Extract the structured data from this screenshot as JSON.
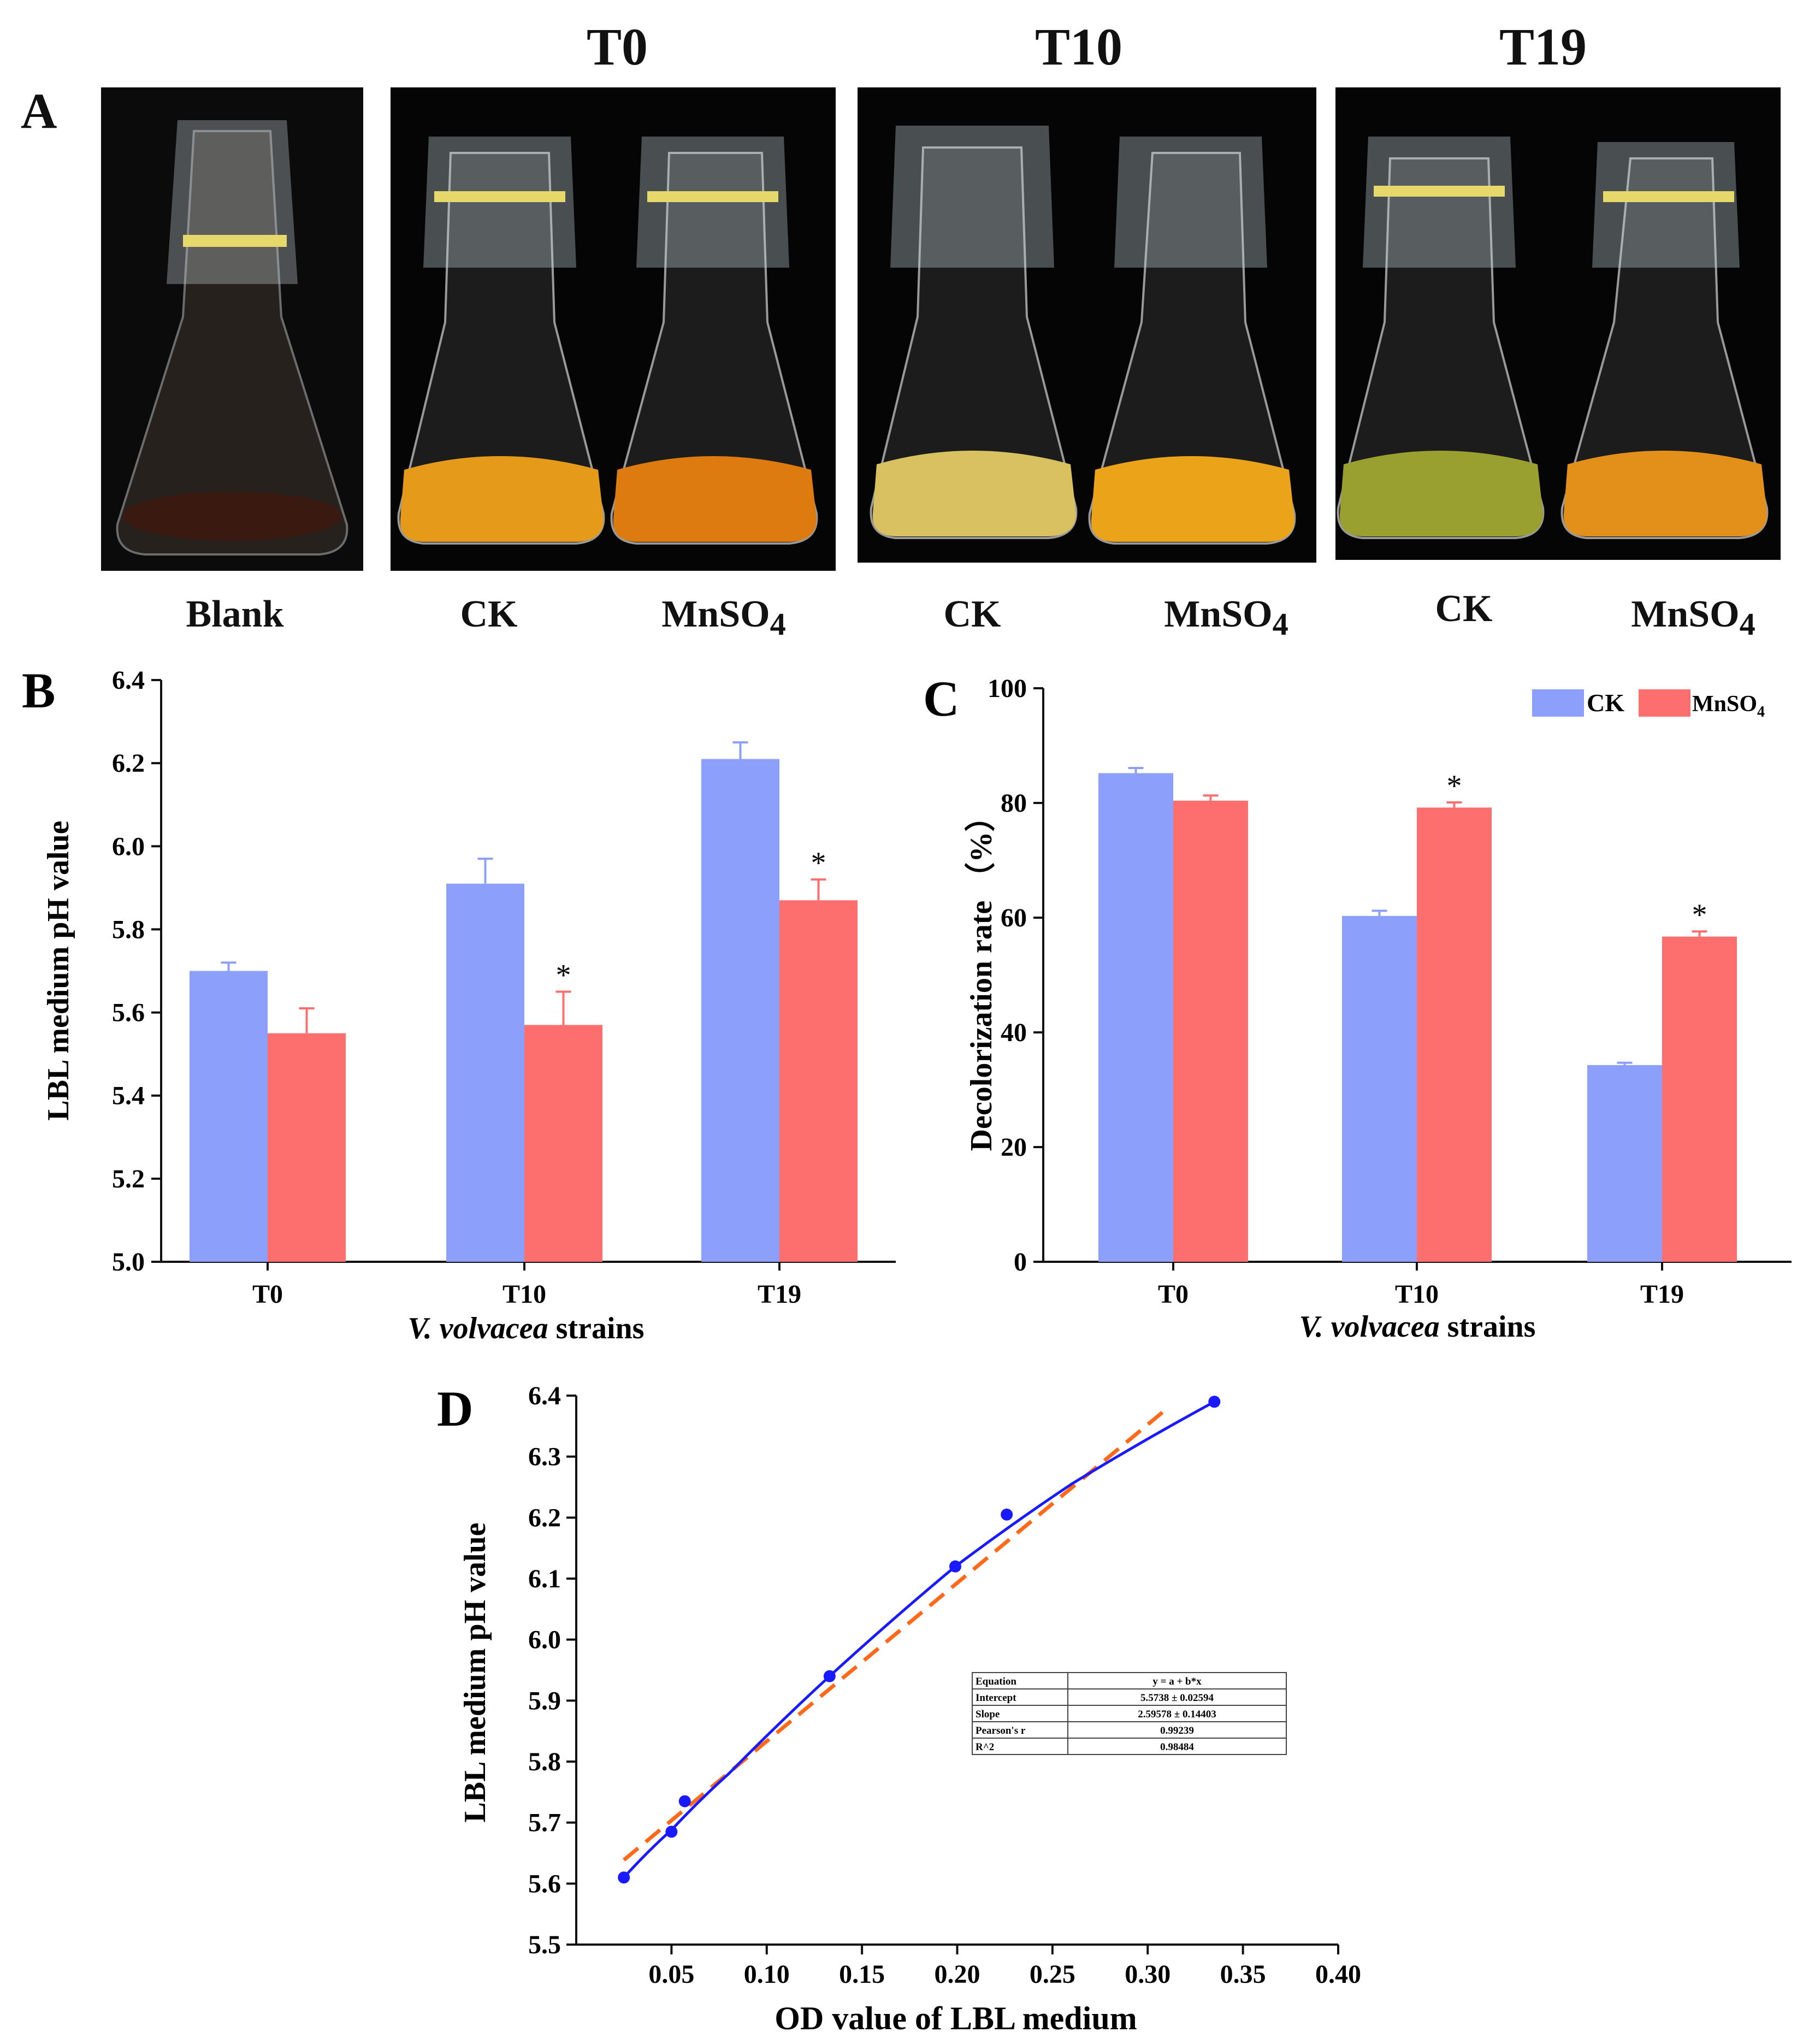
{
  "panelA": {
    "letter": "A",
    "group_titles": [
      "T0",
      "T10",
      "T19"
    ],
    "captions": {
      "blank": "Blank",
      "t0_ck": "CK",
      "t0_mn": "MnSO4",
      "t10_ck": "CK",
      "t10_mn": "MnSO4",
      "t19_ck": "CK",
      "t19_mn": "MnSO4"
    }
  },
  "colors": {
    "ck": "#8c9ffb",
    "mn": "#fd6e6e",
    "fit": "#1a1aff",
    "linear": "#ff6a1a"
  },
  "chart_data": [
    {
      "panel": "B",
      "type": "bar",
      "title": "",
      "xlabel": "V. volvacea strains",
      "ylabel": "LBL medium pH value",
      "categories": [
        "T0",
        "T10",
        "T19"
      ],
      "ylim": [
        5.0,
        6.4
      ],
      "yticks": [
        "5.0",
        "5.2",
        "5.4",
        "5.6",
        "5.8",
        "6.0",
        "6.2",
        "6.4"
      ],
      "series": [
        {
          "name": "CK",
          "values": [
            5.7,
            5.91,
            6.21
          ],
          "errors": [
            0.02,
            0.06,
            0.04
          ],
          "sig": [
            "",
            "",
            ""
          ]
        },
        {
          "name": "MnSO4",
          "values": [
            5.55,
            5.57,
            5.87
          ],
          "errors": [
            0.06,
            0.08,
            0.05
          ],
          "sig": [
            "",
            "*",
            "*"
          ]
        }
      ]
    },
    {
      "panel": "C",
      "type": "bar",
      "title": "",
      "xlabel": "V. volvacea strains",
      "ylabel": "Decolorization rate （%）",
      "categories": [
        "T0",
        "T10",
        "T19"
      ],
      "ylim": [
        0,
        100
      ],
      "yticks": [
        "0",
        "20",
        "40",
        "60",
        "80",
        "100"
      ],
      "legend": [
        "CK",
        "MnSO4"
      ],
      "series": [
        {
          "name": "CK",
          "values": [
            85.2,
            60.3,
            34.3
          ],
          "errors": [
            0.9,
            0.9,
            0.4
          ],
          "sig": [
            "",
            "",
            ""
          ]
        },
        {
          "name": "MnSO4",
          "values": [
            80.4,
            79.2,
            56.7
          ],
          "errors": [
            0.9,
            0.9,
            0.9
          ],
          "sig": [
            "",
            "*",
            "*"
          ]
        }
      ]
    },
    {
      "panel": "D",
      "type": "scatter",
      "title": "",
      "xlabel": "OD value of LBL medium",
      "ylabel": "LBL medium pH value",
      "xlim": [
        0.0,
        0.4
      ],
      "ylim": [
        5.5,
        6.4
      ],
      "xticks": [
        "0.05",
        "0.10",
        "0.15",
        "0.20",
        "0.25",
        "0.30",
        "0.35",
        "0.40"
      ],
      "yticks": [
        "5.5",
        "5.6",
        "5.7",
        "5.8",
        "5.9",
        "6.0",
        "6.1",
        "6.2",
        "6.3",
        "6.4"
      ],
      "points": {
        "x": [
          0.025,
          0.05,
          0.057,
          0.133,
          0.199,
          0.226,
          0.335
        ],
        "y": [
          5.61,
          5.685,
          5.735,
          5.94,
          6.12,
          6.205,
          6.39
        ]
      },
      "linear_fit": {
        "intercept": 5.5738,
        "slope": 2.59578,
        "x_range": [
          0.025,
          0.31
        ]
      },
      "stats_table": [
        [
          "Equation",
          "y = a + b*x"
        ],
        [
          "Intercept",
          "5.5738 ± 0.02594"
        ],
        [
          "Slope",
          "2.59578 ± 0.14403"
        ],
        [
          "Pearson's r",
          "0.99239"
        ],
        [
          "R^2",
          "0.98484"
        ]
      ]
    }
  ]
}
